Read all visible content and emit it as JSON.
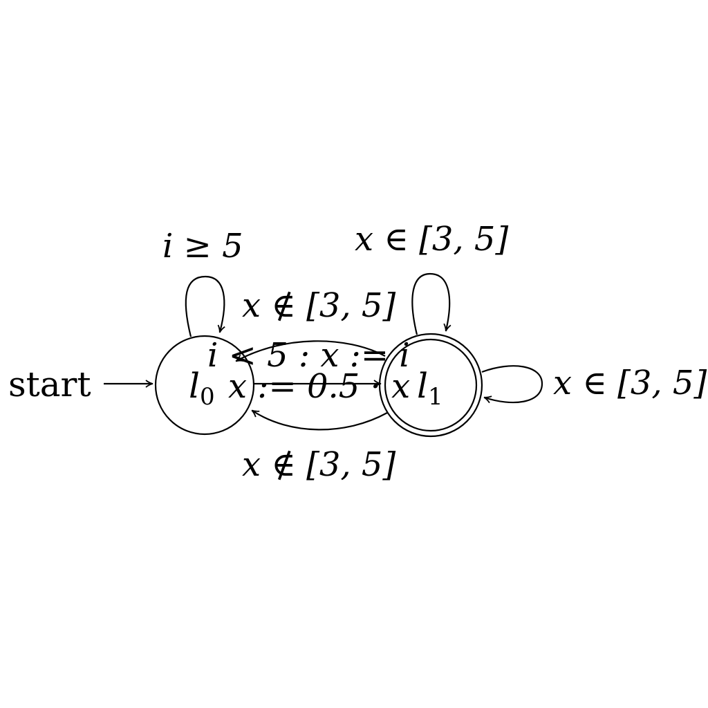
{
  "start_label": "start",
  "states": [
    {
      "id": "l0",
      "base": "l",
      "sub": "0",
      "accepting": false
    },
    {
      "id": "l1",
      "base": "l",
      "sub": "1",
      "accepting": true
    }
  ],
  "edges": {
    "l0_self": "i ≥ 5",
    "l0_to_l1_upper": "x ∉ [3, 5]",
    "l1_to_l0_upper": "i < 5 : x := i",
    "l0_to_l1_straight": "x := 0.5 · x",
    "l1_to_l0_lower": "x ∉ [3, 5]",
    "l1_self_top": "x ∈ [3, 5]",
    "l1_self_right": "x ∈ [3, 5]"
  }
}
